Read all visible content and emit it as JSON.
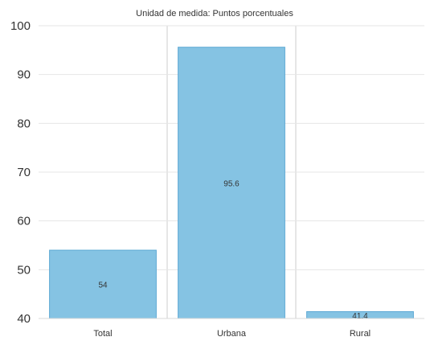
{
  "chart_data": {
    "type": "bar",
    "title": "",
    "subtitle": "Unidad de medida: Puntos porcentuales",
    "xlabel": "",
    "ylabel": "",
    "categories": [
      "Total",
      "Urbana",
      "Rural"
    ],
    "values": [
      54,
      95.6,
      41.4
    ],
    "data_labels": [
      "54",
      "95.6",
      "41.4"
    ],
    "ylim": [
      40,
      100
    ],
    "yticks": [
      "40",
      "50",
      "60",
      "70",
      "80",
      "90",
      "100"
    ],
    "grid": true,
    "legend": "none",
    "bar_color": "#85c3e3",
    "bar_edge_color": "#5ea9d4"
  }
}
